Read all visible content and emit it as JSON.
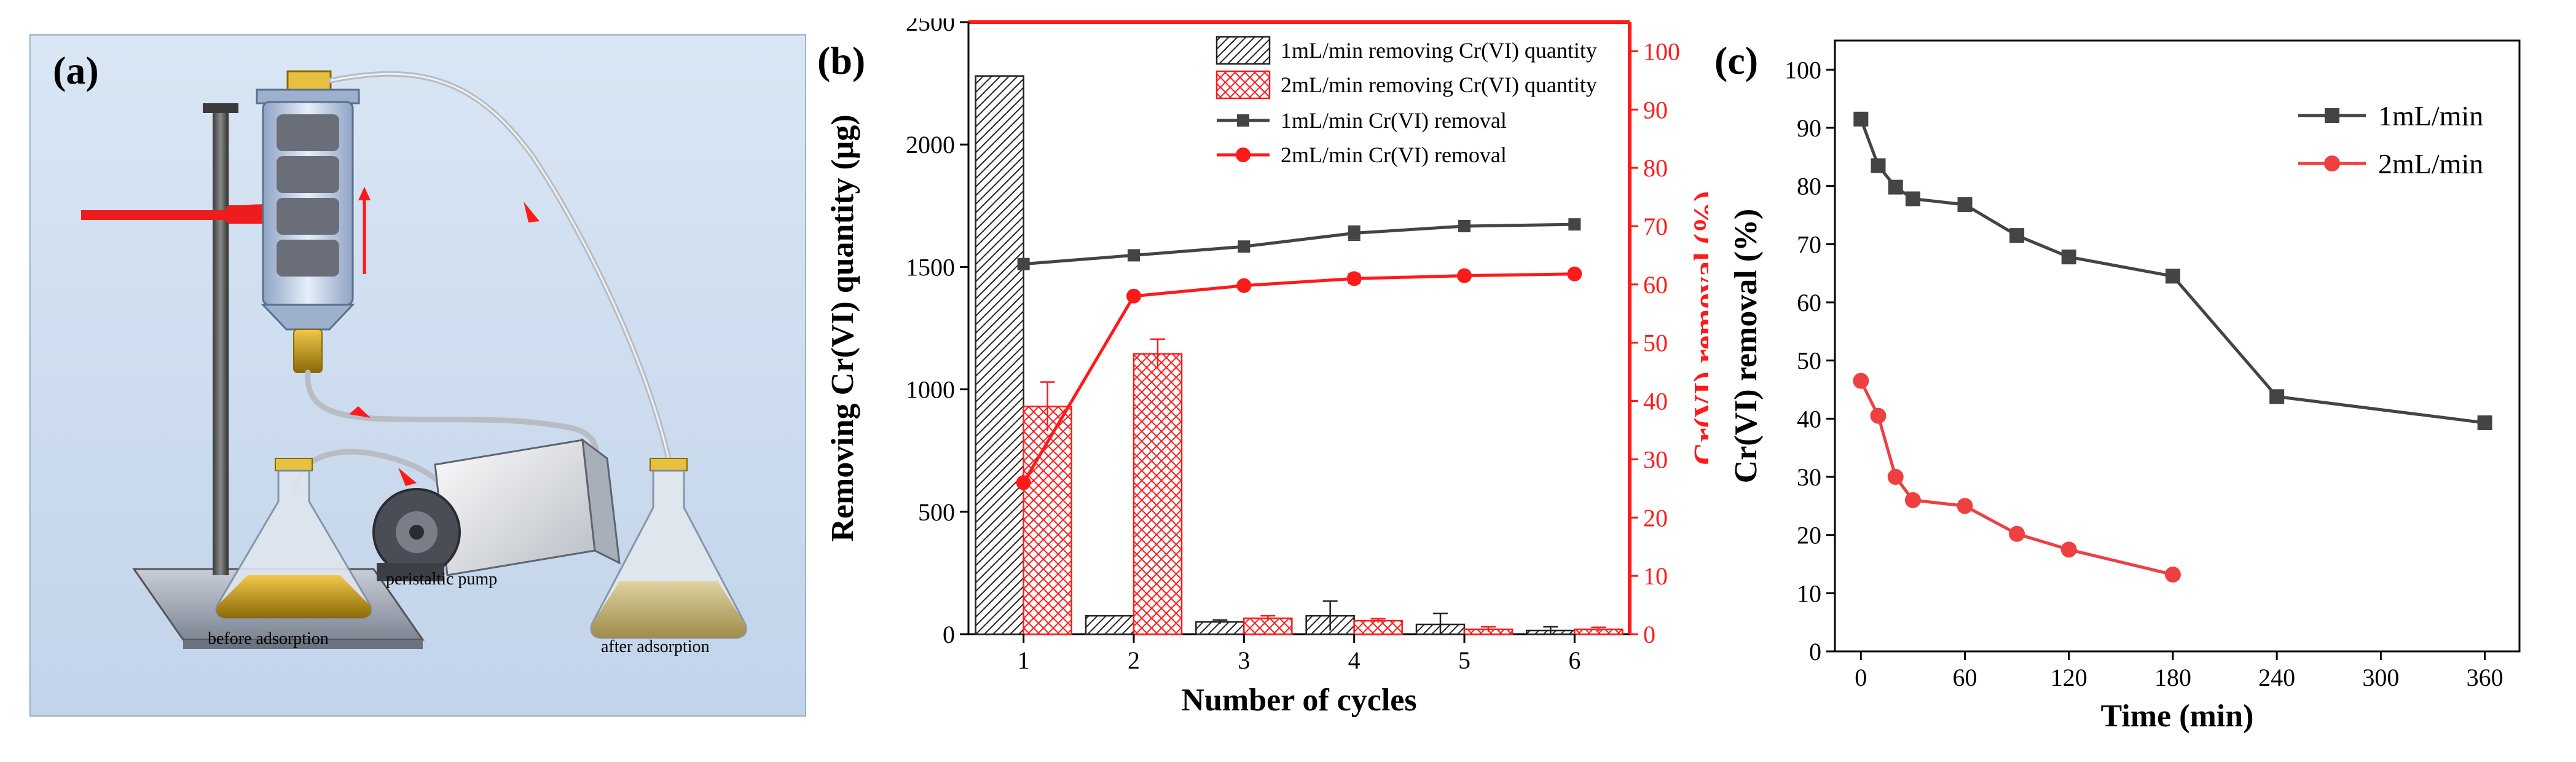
{
  "panels": {
    "a": {
      "letter": "(a)",
      "label_pump": "peristaltic pump",
      "label_before": "before adsorption",
      "label_after": "after adsorption",
      "colors": {
        "background": "#cfdff1",
        "frame": "#7d95b6",
        "liquid_gold": "#c9a217",
        "pale_liquid": "#c7b477",
        "flow_arrow": "#ff1a1a"
      },
      "icons": [
        "retort-stand",
        "adsorption-column",
        "flask-before",
        "flask-after",
        "peristaltic-pump",
        "flow-direction-arrow"
      ]
    },
    "b": {
      "letter": "(b)"
    },
    "c": {
      "letter": "(c)"
    }
  },
  "chart_data": [
    {
      "type": "bar",
      "panel": "b",
      "xlabel": "Number of cycles",
      "ylabel": "Removing Cr(VI) quantity (μg)",
      "y2label": "Cr(VI) removal (%)",
      "categories": [
        "1",
        "2",
        "3",
        "4",
        "5",
        "6"
      ],
      "ylim": [
        0,
        2500
      ],
      "y_ticks": [
        "0",
        "500",
        "1000",
        "1500",
        "2000",
        "2500"
      ],
      "y2lim": [
        0,
        105
      ],
      "y2_ticks": [
        "0",
        "10",
        "20",
        "30",
        "40",
        "50",
        "60",
        "70",
        "80",
        "90",
        "100"
      ],
      "bar_series": [
        {
          "name": "1mL/min removing Cr(VI) quantity",
          "values": [
            2280,
            75,
            50,
            75,
            40,
            15
          ],
          "errors": [
            0,
            0,
            8,
            60,
            45,
            15
          ],
          "color": "#222222",
          "pattern": "hatch"
        },
        {
          "name": "2mL/min removing Cr(VI) quantity",
          "values": [
            930,
            1145,
            65,
            55,
            20,
            20
          ],
          "errors": [
            100,
            60,
            10,
            8,
            10,
            8
          ],
          "color": "#ff1a1a",
          "pattern": "crosshatch"
        }
      ],
      "line_series": [
        {
          "name": "1mL/min Cr(VI) removal",
          "values": [
            63.5,
            65,
            66.5,
            68.8,
            70,
            70.3
          ],
          "errors": [
            0,
            0,
            0,
            1.2,
            0.3,
            0.3
          ],
          "color": "#444444",
          "marker": "square"
        },
        {
          "name": "2mL/min Cr(VI) removal",
          "values": [
            26,
            58,
            59.8,
            61,
            61.5,
            61.8
          ],
          "errors": [
            0,
            0,
            0.5,
            0.8,
            0.3,
            0.3
          ],
          "color": "#ff1a1a",
          "marker": "circle"
        }
      ],
      "legend_position": "top-right",
      "colors": {
        "right_axis": "#ff1a1a"
      }
    },
    {
      "type": "line",
      "panel": "c",
      "xlabel": "Time (min)",
      "ylabel": "Cr(VI) removal (%)",
      "xlim": [
        -15,
        380
      ],
      "x_ticks": [
        0,
        60,
        120,
        180,
        240,
        300,
        360
      ],
      "ylim": [
        0,
        105
      ],
      "y_ticks": [
        0,
        10,
        20,
        30,
        40,
        50,
        60,
        70,
        80,
        90,
        100
      ],
      "series": [
        {
          "name": "1mL/min",
          "x": [
            0,
            10,
            20,
            30,
            60,
            90,
            120,
            180,
            240,
            360
          ],
          "y": [
            91.5,
            83.5,
            79.8,
            77.8,
            76.8,
            71.5,
            67.8,
            64.5,
            43.8,
            39.3
          ],
          "color": "#444444",
          "marker": "square"
        },
        {
          "name": "2mL/min",
          "x": [
            0,
            10,
            20,
            30,
            60,
            90,
            120,
            180
          ],
          "y": [
            46.5,
            40.5,
            30,
            26,
            25,
            20.2,
            17.5,
            13.2
          ],
          "color": "#ee4040",
          "marker": "circle"
        }
      ],
      "legend_position": "top-right"
    }
  ]
}
